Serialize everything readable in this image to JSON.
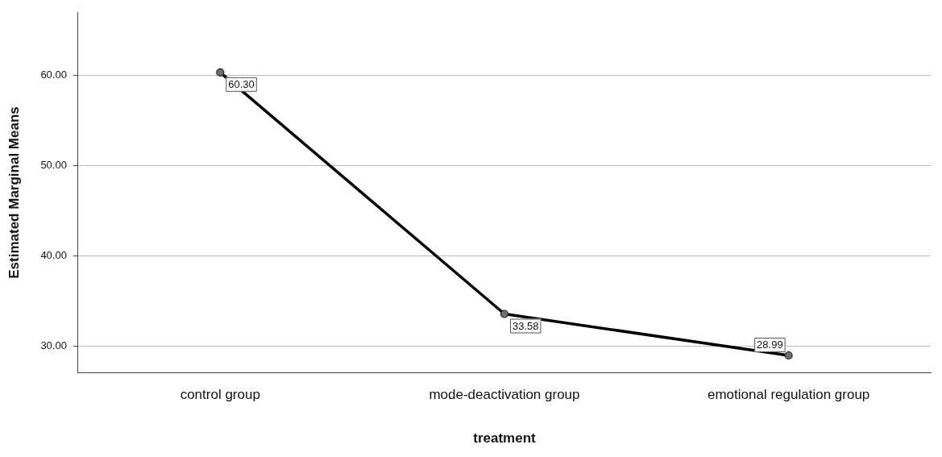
{
  "chart_data": {
    "type": "line",
    "xlabel": "treatment",
    "ylabel": "Estimated Marginal Means",
    "categories": [
      "control group",
      "mode-deactivation group",
      "emotional regulation group"
    ],
    "series": [
      {
        "color": "#000000",
        "values": [
          60.3,
          33.58,
          28.99
        ],
        "value_labels": [
          "60.30",
          "33.58",
          "28.99"
        ]
      }
    ],
    "ylim": [
      27.1,
      66.9
    ],
    "yticks": [
      {
        "value": 30,
        "label": "30.00"
      },
      {
        "value": 40,
        "label": "40.00"
      },
      {
        "value": 50,
        "label": "50.00"
      },
      {
        "value": 60,
        "label": "60.00"
      }
    ],
    "grid": "y",
    "marker": "circle",
    "line_style": "solid",
    "legend": false
  }
}
